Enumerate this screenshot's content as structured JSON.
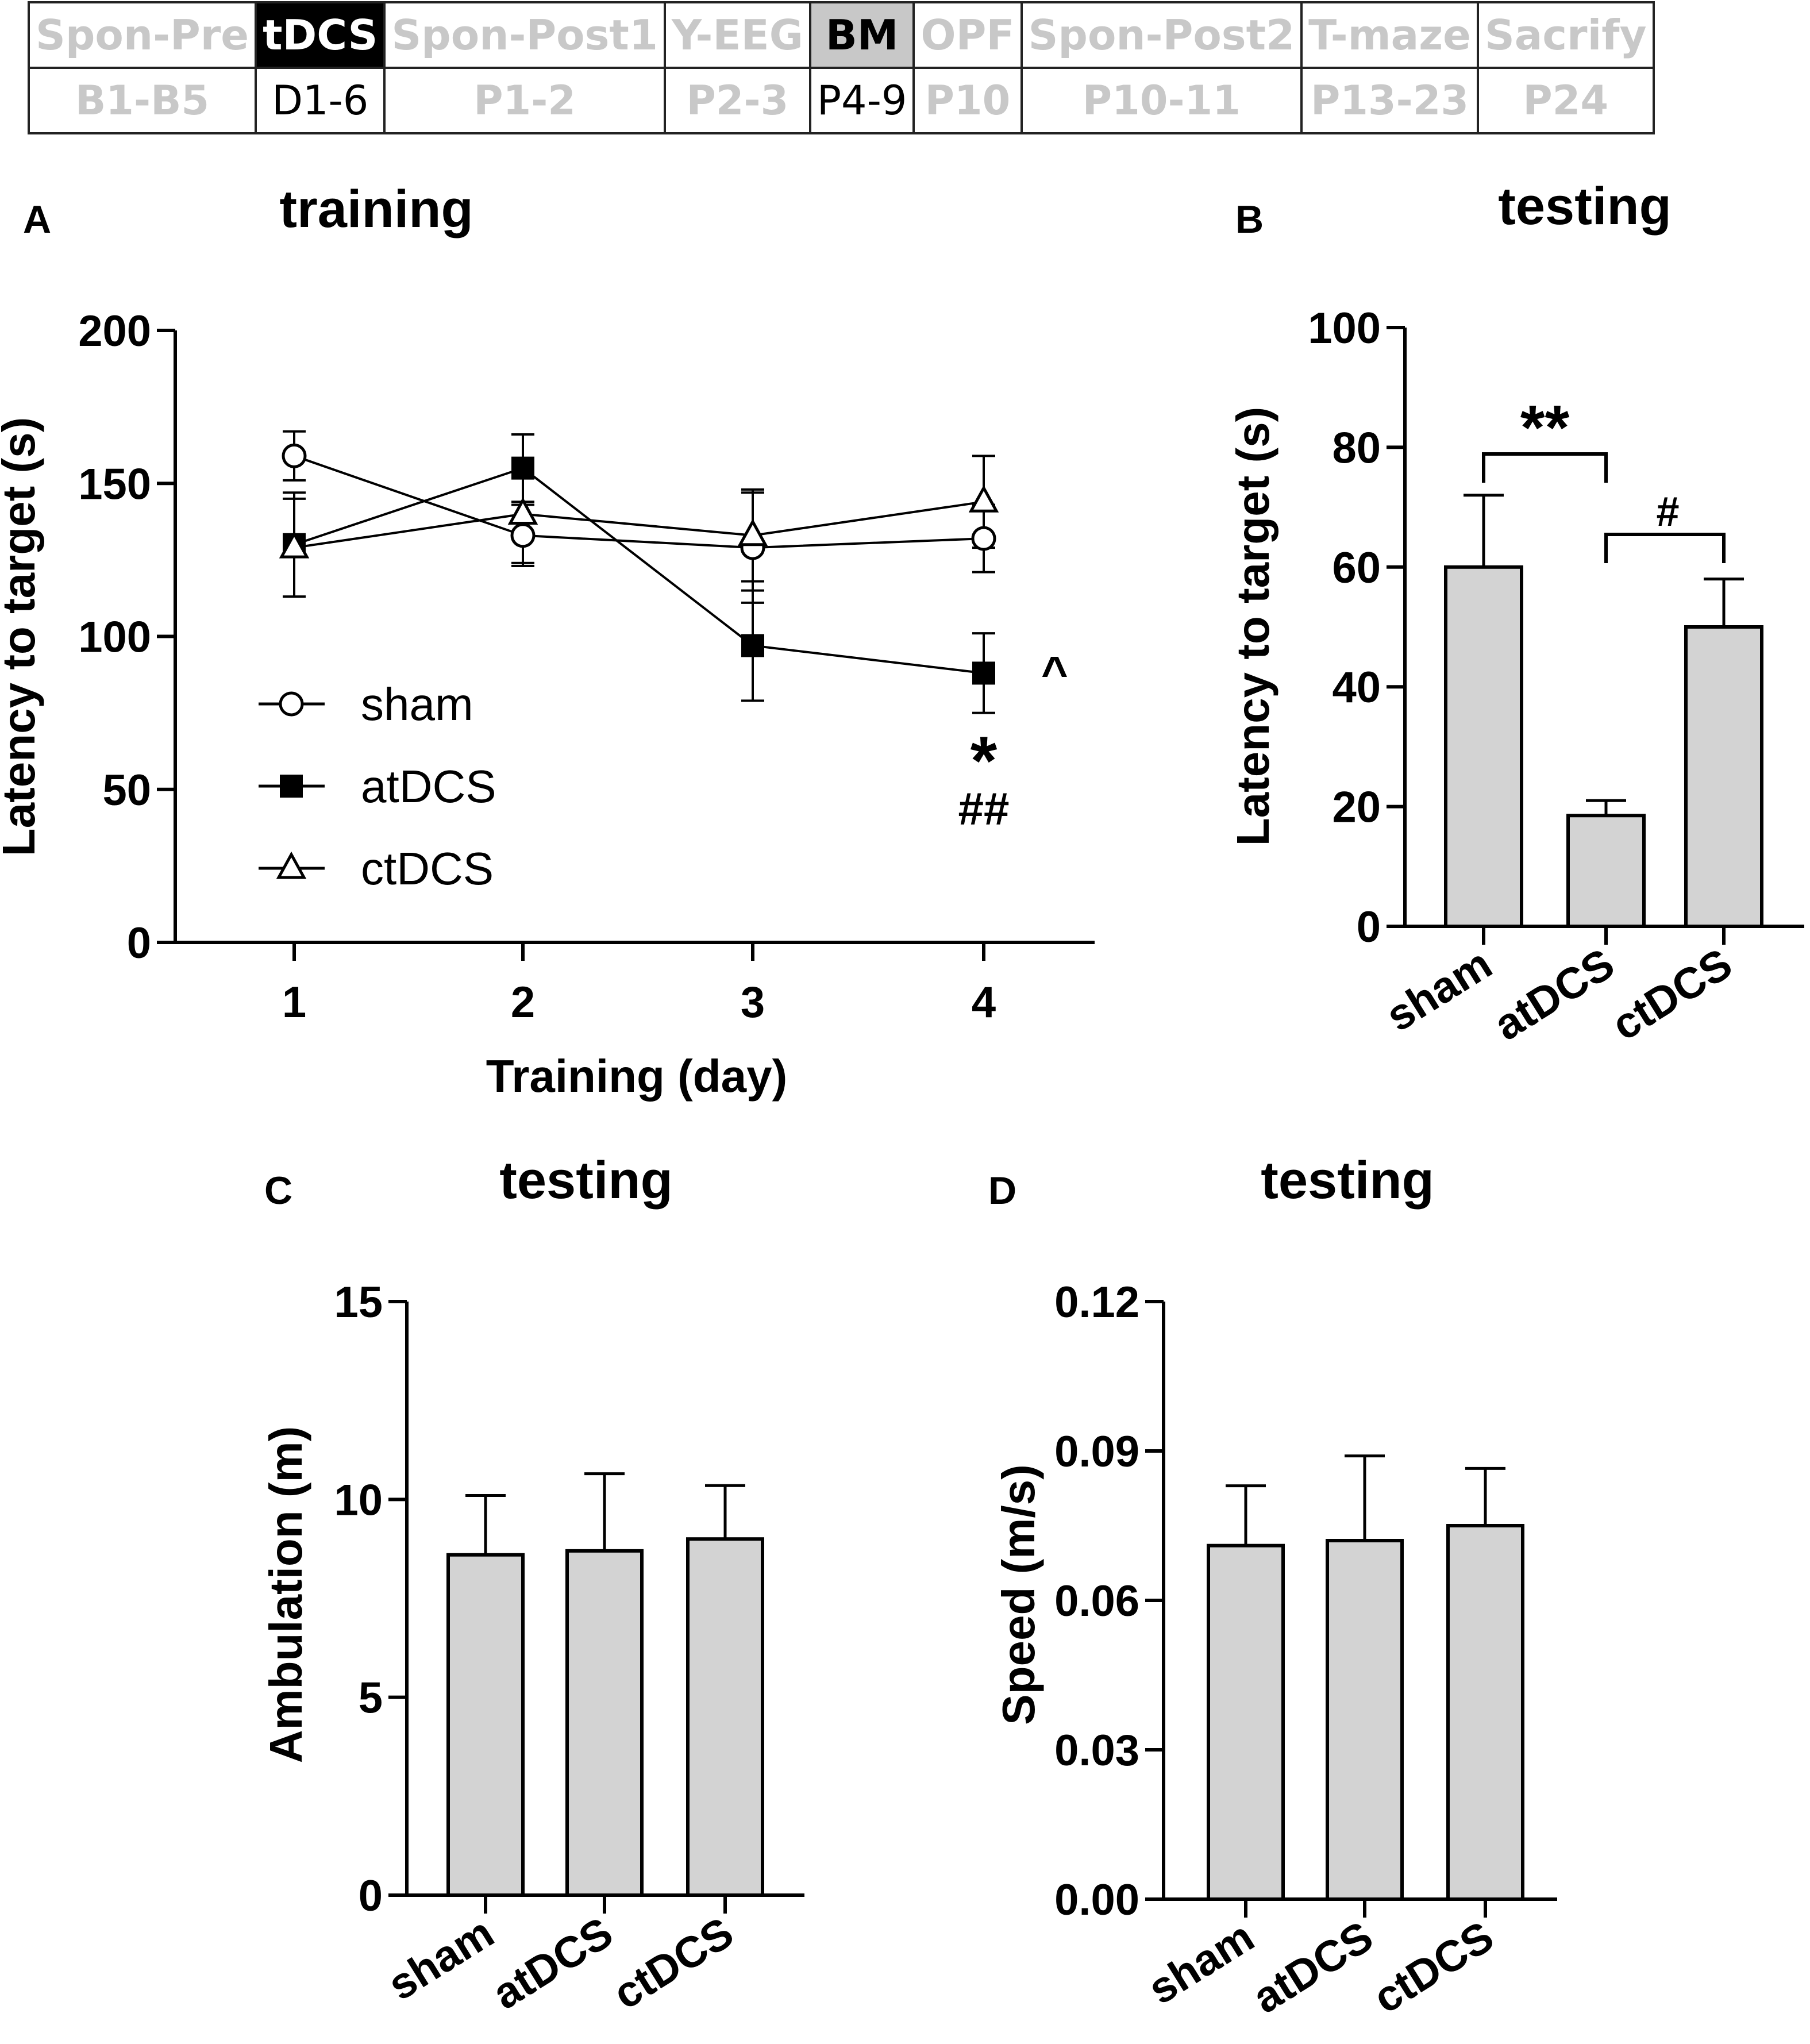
{
  "timeline": {
    "stages": [
      {
        "name": "Spon-Pre",
        "code": "B1-B5",
        "style": "inactive"
      },
      {
        "name": "tDCS",
        "code": "D1-6",
        "style": "black"
      },
      {
        "name": "Spon-Post1",
        "code": "P1-2",
        "style": "inactive"
      },
      {
        "name": "Y-EEG",
        "code": "P2-3",
        "style": "inactive"
      },
      {
        "name": "BM",
        "code": "P4-9",
        "style": "grey"
      },
      {
        "name": "OPF",
        "code": "P10",
        "style": "inactive"
      },
      {
        "name": "Spon-Post2",
        "code": "P10-11",
        "style": "inactive"
      },
      {
        "name": "T-maze",
        "code": "P13-23",
        "style": "inactive"
      },
      {
        "name": "Sacrify",
        "code": "P24",
        "style": "inactive"
      }
    ]
  },
  "colors": {
    "bar_fill": "#d3d3d3",
    "stroke": "#000000",
    "inactive_text": "#c8c8c8"
  },
  "chart_data": [
    {
      "panel": "A",
      "type": "line",
      "title": "training",
      "xlabel": "Training (day)",
      "ylabel": "Latency to target (s)",
      "x": [
        1,
        2,
        3,
        4
      ],
      "ylim": [
        0,
        200
      ],
      "yticks": [
        0,
        50,
        100,
        150,
        200
      ],
      "series": [
        {
          "name": "sham",
          "marker": "open-circle",
          "values": [
            159,
            133,
            129,
            132
          ],
          "errors": [
            8,
            10,
            18,
            11
          ]
        },
        {
          "name": "atDCS",
          "marker": "filled-square",
          "values": [
            130,
            155,
            97,
            88
          ],
          "errors": [
            17,
            11,
            18,
            13
          ]
        },
        {
          "name": "ctDCS",
          "marker": "open-triangle",
          "values": [
            129,
            140,
            133,
            144
          ],
          "errors": [
            16,
            16,
            15,
            15
          ]
        }
      ],
      "legend": [
        "sham",
        "atDCS",
        "ctDCS"
      ],
      "annotations": {
        "caret": "^",
        "star": "*",
        "hash": "##"
      }
    },
    {
      "panel": "B",
      "type": "bar",
      "title": "testing",
      "ylabel": "Latency to target (s)",
      "categories": [
        "sham",
        "atDCS",
        "ctDCS"
      ],
      "values": [
        60,
        18.5,
        50
      ],
      "errors": [
        12,
        2.5,
        8
      ],
      "ylim": [
        0,
        100
      ],
      "yticks": [
        0,
        20,
        40,
        60,
        80,
        100
      ],
      "annotations": {
        "double_star": "**",
        "hash": "#"
      }
    },
    {
      "panel": "C",
      "type": "bar",
      "title": "testing",
      "ylabel": "Ambulation (m)",
      "categories": [
        "sham",
        "atDCS",
        "ctDCS"
      ],
      "values": [
        8.6,
        8.7,
        9.0
      ],
      "errors": [
        1.5,
        1.95,
        1.35
      ],
      "ylim": [
        0,
        15
      ],
      "yticks": [
        0,
        5,
        10,
        15
      ]
    },
    {
      "panel": "D",
      "type": "bar",
      "title": "testing",
      "ylabel": "Speed (m/s)",
      "categories": [
        "sham",
        "atDCS",
        "ctDCS"
      ],
      "values": [
        0.071,
        0.072,
        0.075
      ],
      "errors": [
        0.012,
        0.017,
        0.0115
      ],
      "ylim": [
        0,
        0.12
      ],
      "yticks": [
        "0.00",
        "0.03",
        "0.06",
        "0.09",
        "0.12"
      ],
      "ytick_values": [
        0,
        0.03,
        0.06,
        0.09,
        0.12
      ]
    }
  ]
}
